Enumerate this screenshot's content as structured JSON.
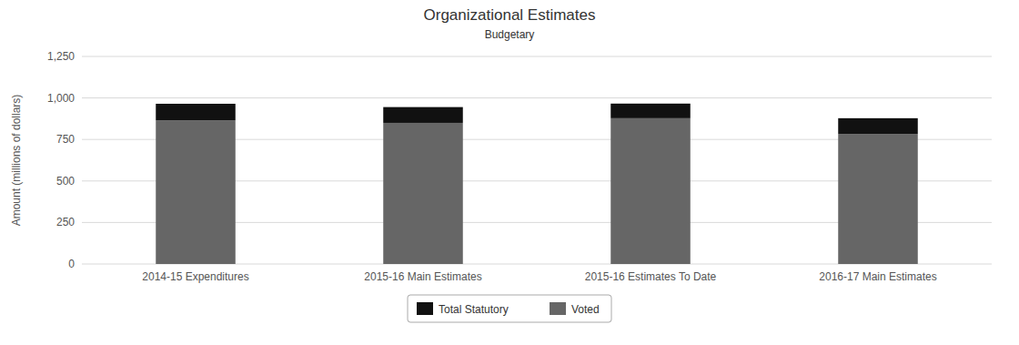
{
  "chart_data": {
    "type": "bar",
    "stacked": true,
    "title": "Organizational Estimates",
    "subtitle": "Budgetary",
    "categories": [
      "2014-15 Expenditures",
      "2015-16 Main Estimates",
      "2015-16 Estimates To Date",
      "2016-17 Main Estimates"
    ],
    "series": [
      {
        "name": "Voted",
        "color": "#666666",
        "values": [
          865,
          850,
          878,
          783
        ]
      },
      {
        "name": "Total Statutory",
        "color": "#111111",
        "values": [
          100,
          95,
          88,
          95
        ]
      }
    ],
    "y_label": "Amount (millions of dollars)",
    "ylim": [
      0,
      1250
    ],
    "yticks": [
      0,
      250,
      500,
      750,
      {
        "value": 1000,
        "label": "1,000"
      },
      {
        "value": 1250,
        "label": "1,250"
      }
    ],
    "grid": true,
    "legend": "bottom"
  }
}
